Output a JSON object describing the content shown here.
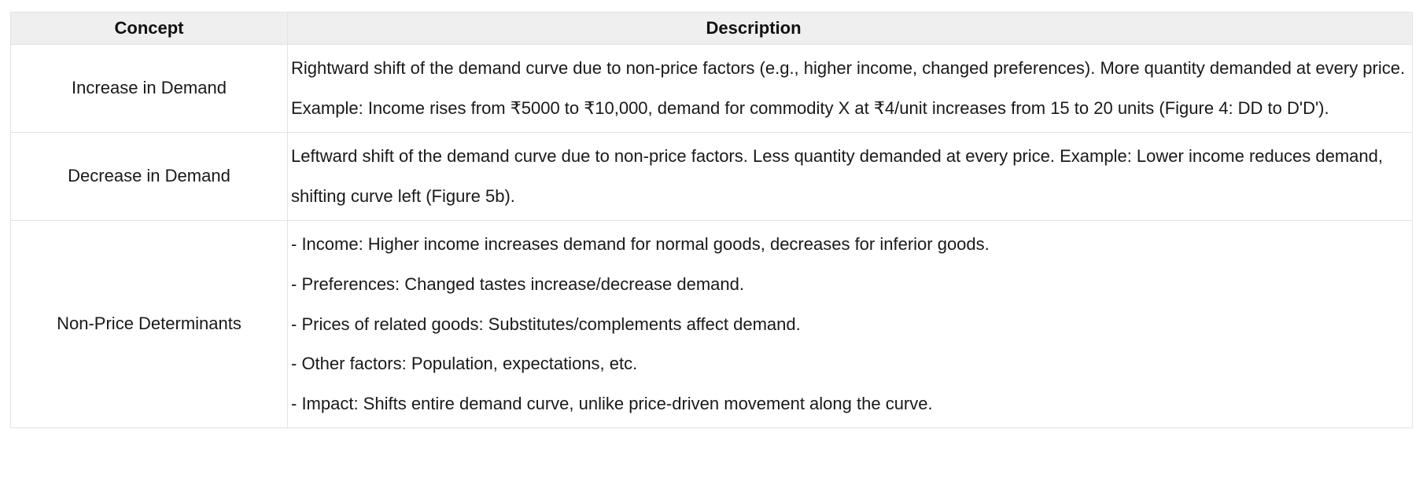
{
  "table": {
    "headers": [
      "Concept",
      "Description"
    ],
    "rows": [
      {
        "concept": "Increase in Demand",
        "description_lines": [
          "Rightward shift of the demand curve due to non-price factors (e.g., higher income, changed preferences). More quantity demanded at every price. Example: Income rises from ₹5000 to ₹10,000, demand for commodity X at ₹4/unit increases from 15 to 20 units (Figure 4: DD to D'D')."
        ]
      },
      {
        "concept": "Decrease in Demand",
        "description_lines": [
          "Leftward shift of the demand curve due to non-price factors. Less quantity demanded at every price. Example: Lower income reduces demand, shifting curve left (Figure 5b)."
        ]
      },
      {
        "concept": "Non-Price Determinants",
        "description_lines": [
          "- Income: Higher income increases demand for normal goods, decreases for inferior goods.",
          "- Preferences: Changed tastes increase/decrease demand.",
          "- Prices of related goods: Substitutes/complements affect demand.",
          "- Other factors: Population, expectations, etc.",
          "- Impact: Shifts entire demand curve, unlike price-driven movement along the curve."
        ]
      }
    ]
  },
  "colors": {
    "header_background": "#efefef",
    "border": "#e3e3e3",
    "text": "#191919",
    "page_background": "#ffffff"
  }
}
